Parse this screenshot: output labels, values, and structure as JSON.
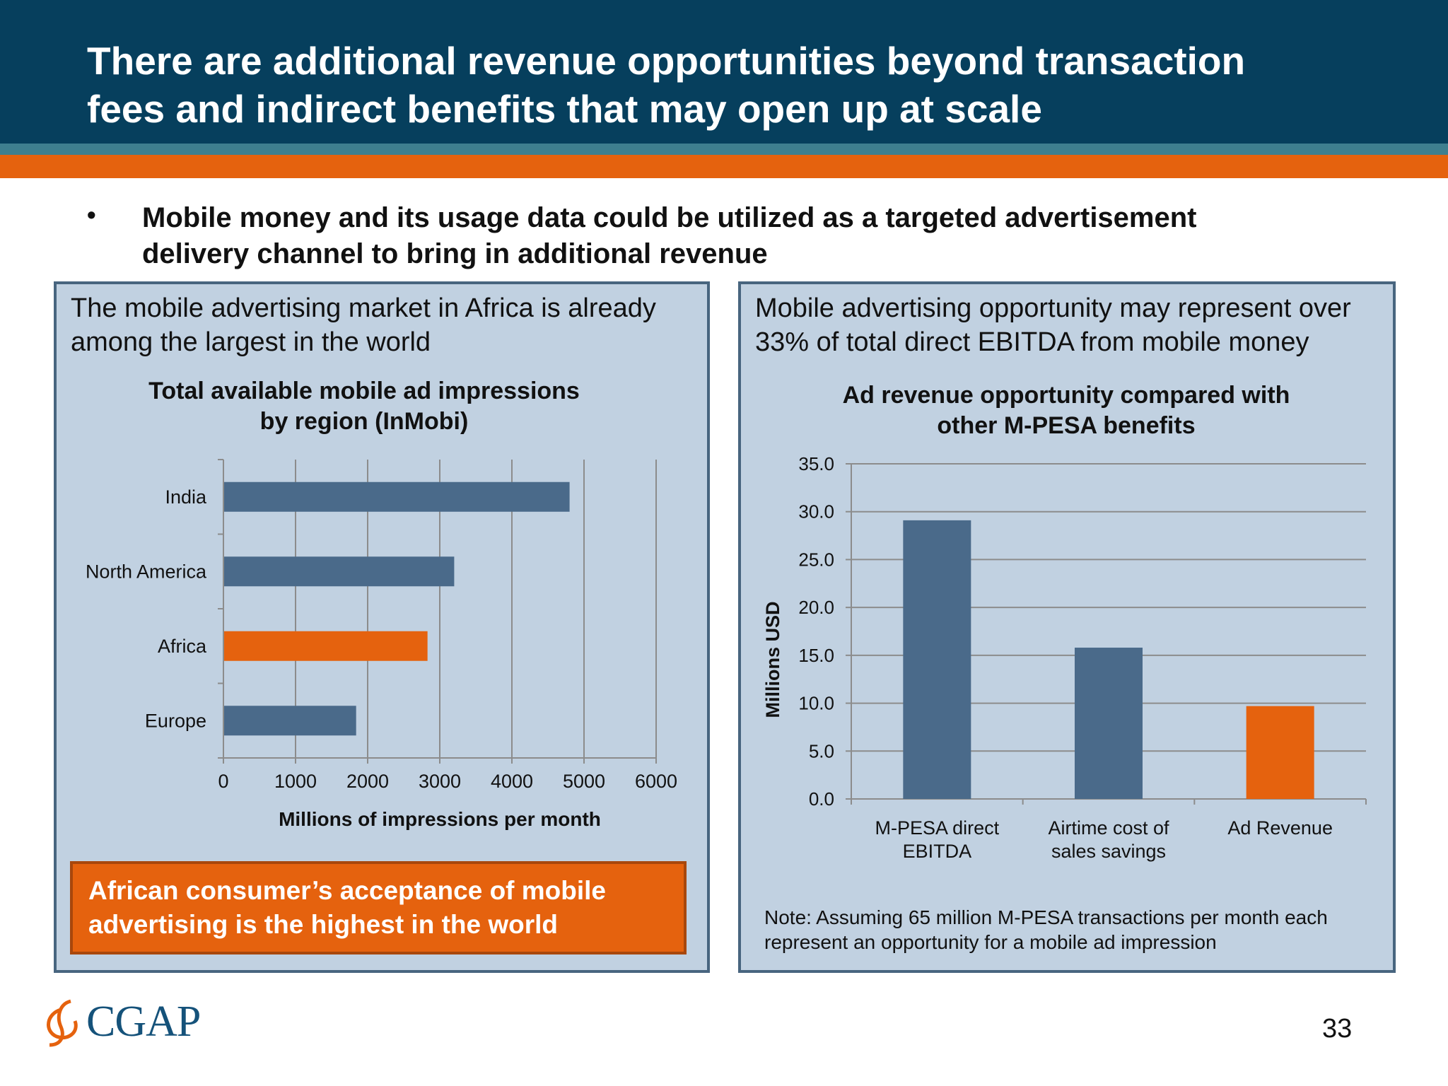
{
  "title": {
    "line1": "There are additional revenue opportunities beyond transaction",
    "line2": "fees and indirect benefits that may open up at scale"
  },
  "bullet": {
    "symbol": "•",
    "line1": "Mobile money and its usage data could be utilized as a targeted advertisement",
    "line2": "delivery channel to bring in additional revenue"
  },
  "left_panel": {
    "heading_line1": "The mobile advertising market in Africa is already",
    "heading_line2": "among the largest in the world",
    "callout_line1": "African consumer’s acceptance of mobile",
    "callout_line2": "advertising is the highest in the world"
  },
  "right_panel": {
    "heading_line1": "Mobile advertising opportunity may represent over",
    "heading_line2": "33% of total direct EBITDA from mobile money",
    "note_line1": "Note: Assuming 65 million M-PESA transactions per month each",
    "note_line2": "represent an opportunity for a mobile ad impression"
  },
  "colors": {
    "bar_blue": "#4a6a8a",
    "bar_orange": "#e5620e",
    "panel_bg": "#c1d1e1",
    "header_bg": "#063f5d"
  },
  "chart_data": [
    {
      "type": "bar",
      "orientation": "horizontal",
      "title_line1": "Total available mobile ad impressions",
      "title_line2": "by region (InMobi)",
      "categories": [
        "India",
        "North America",
        "Africa",
        "Europe"
      ],
      "values": [
        4800,
        3200,
        2830,
        1840
      ],
      "highlight": "Africa",
      "xlabel": "Millions of impressions per month",
      "xlim": [
        0,
        6000
      ],
      "ticks": [
        "0",
        "1000",
        "2000",
        "3000",
        "4000",
        "5000",
        "6000"
      ],
      "grid": "vertical"
    },
    {
      "type": "bar",
      "orientation": "vertical",
      "title_line1": "Ad revenue opportunity compared with",
      "title_line2": "other M-PESA benefits",
      "categories": [
        {
          "line1": "M-PESA direct",
          "line2": "EBITDA"
        },
        {
          "line1": "Airtime cost of",
          "line2": "sales savings"
        },
        {
          "line1": "Ad Revenue",
          "line2": ""
        }
      ],
      "values": [
        29.1,
        15.8,
        9.7
      ],
      "highlight_index": 2,
      "ylabel": "Millions USD",
      "ylim": [
        0,
        35
      ],
      "ticks": [
        "0.0",
        "5.0",
        "10.0",
        "15.0",
        "20.0",
        "25.0",
        "30.0",
        "35.0"
      ],
      "grid": "horizontal"
    }
  ],
  "footer": {
    "logo_text": "CGAP",
    "page_number": "33"
  }
}
